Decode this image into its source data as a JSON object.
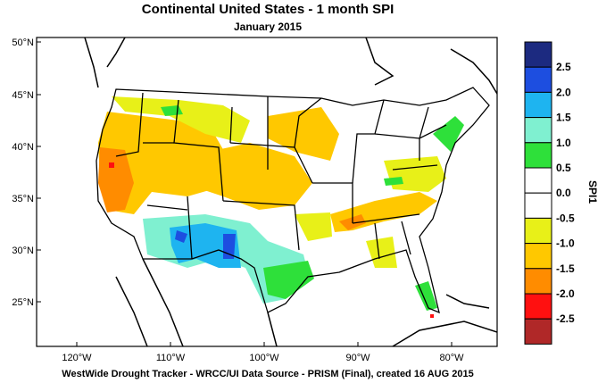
{
  "header": {
    "title": "Continental United States - 1 month SPI",
    "subtitle": "January 2015"
  },
  "footer": {
    "credit": "WestWide Drought Tracker - WRCC/UI  Data Source - PRISM (Final), created 16 AUG 2015"
  },
  "axes": {
    "lat_labels": [
      "50°N",
      "45°N",
      "40°N",
      "35°N",
      "30°N",
      "25°N"
    ],
    "lon_labels": [
      "120°W",
      "110°W",
      "100°W",
      "90°W",
      "80°W"
    ]
  },
  "legend": {
    "title": "SPI1",
    "labels": [
      "2.5",
      "2.0",
      "1.5",
      "1.0",
      "0.5",
      "0.0",
      "-0.5",
      "-1.0",
      "-1.5",
      "-2.0",
      "-2.5"
    ],
    "colors": [
      "#1c2a80",
      "#1d4ee0",
      "#1eb4f0",
      "#7ff0d0",
      "#2ee03a",
      "#ffffff",
      "#ffffff",
      "#e8f018",
      "#ffc800",
      "#ff8c00",
      "#ff1010",
      "#b02828"
    ]
  }
}
